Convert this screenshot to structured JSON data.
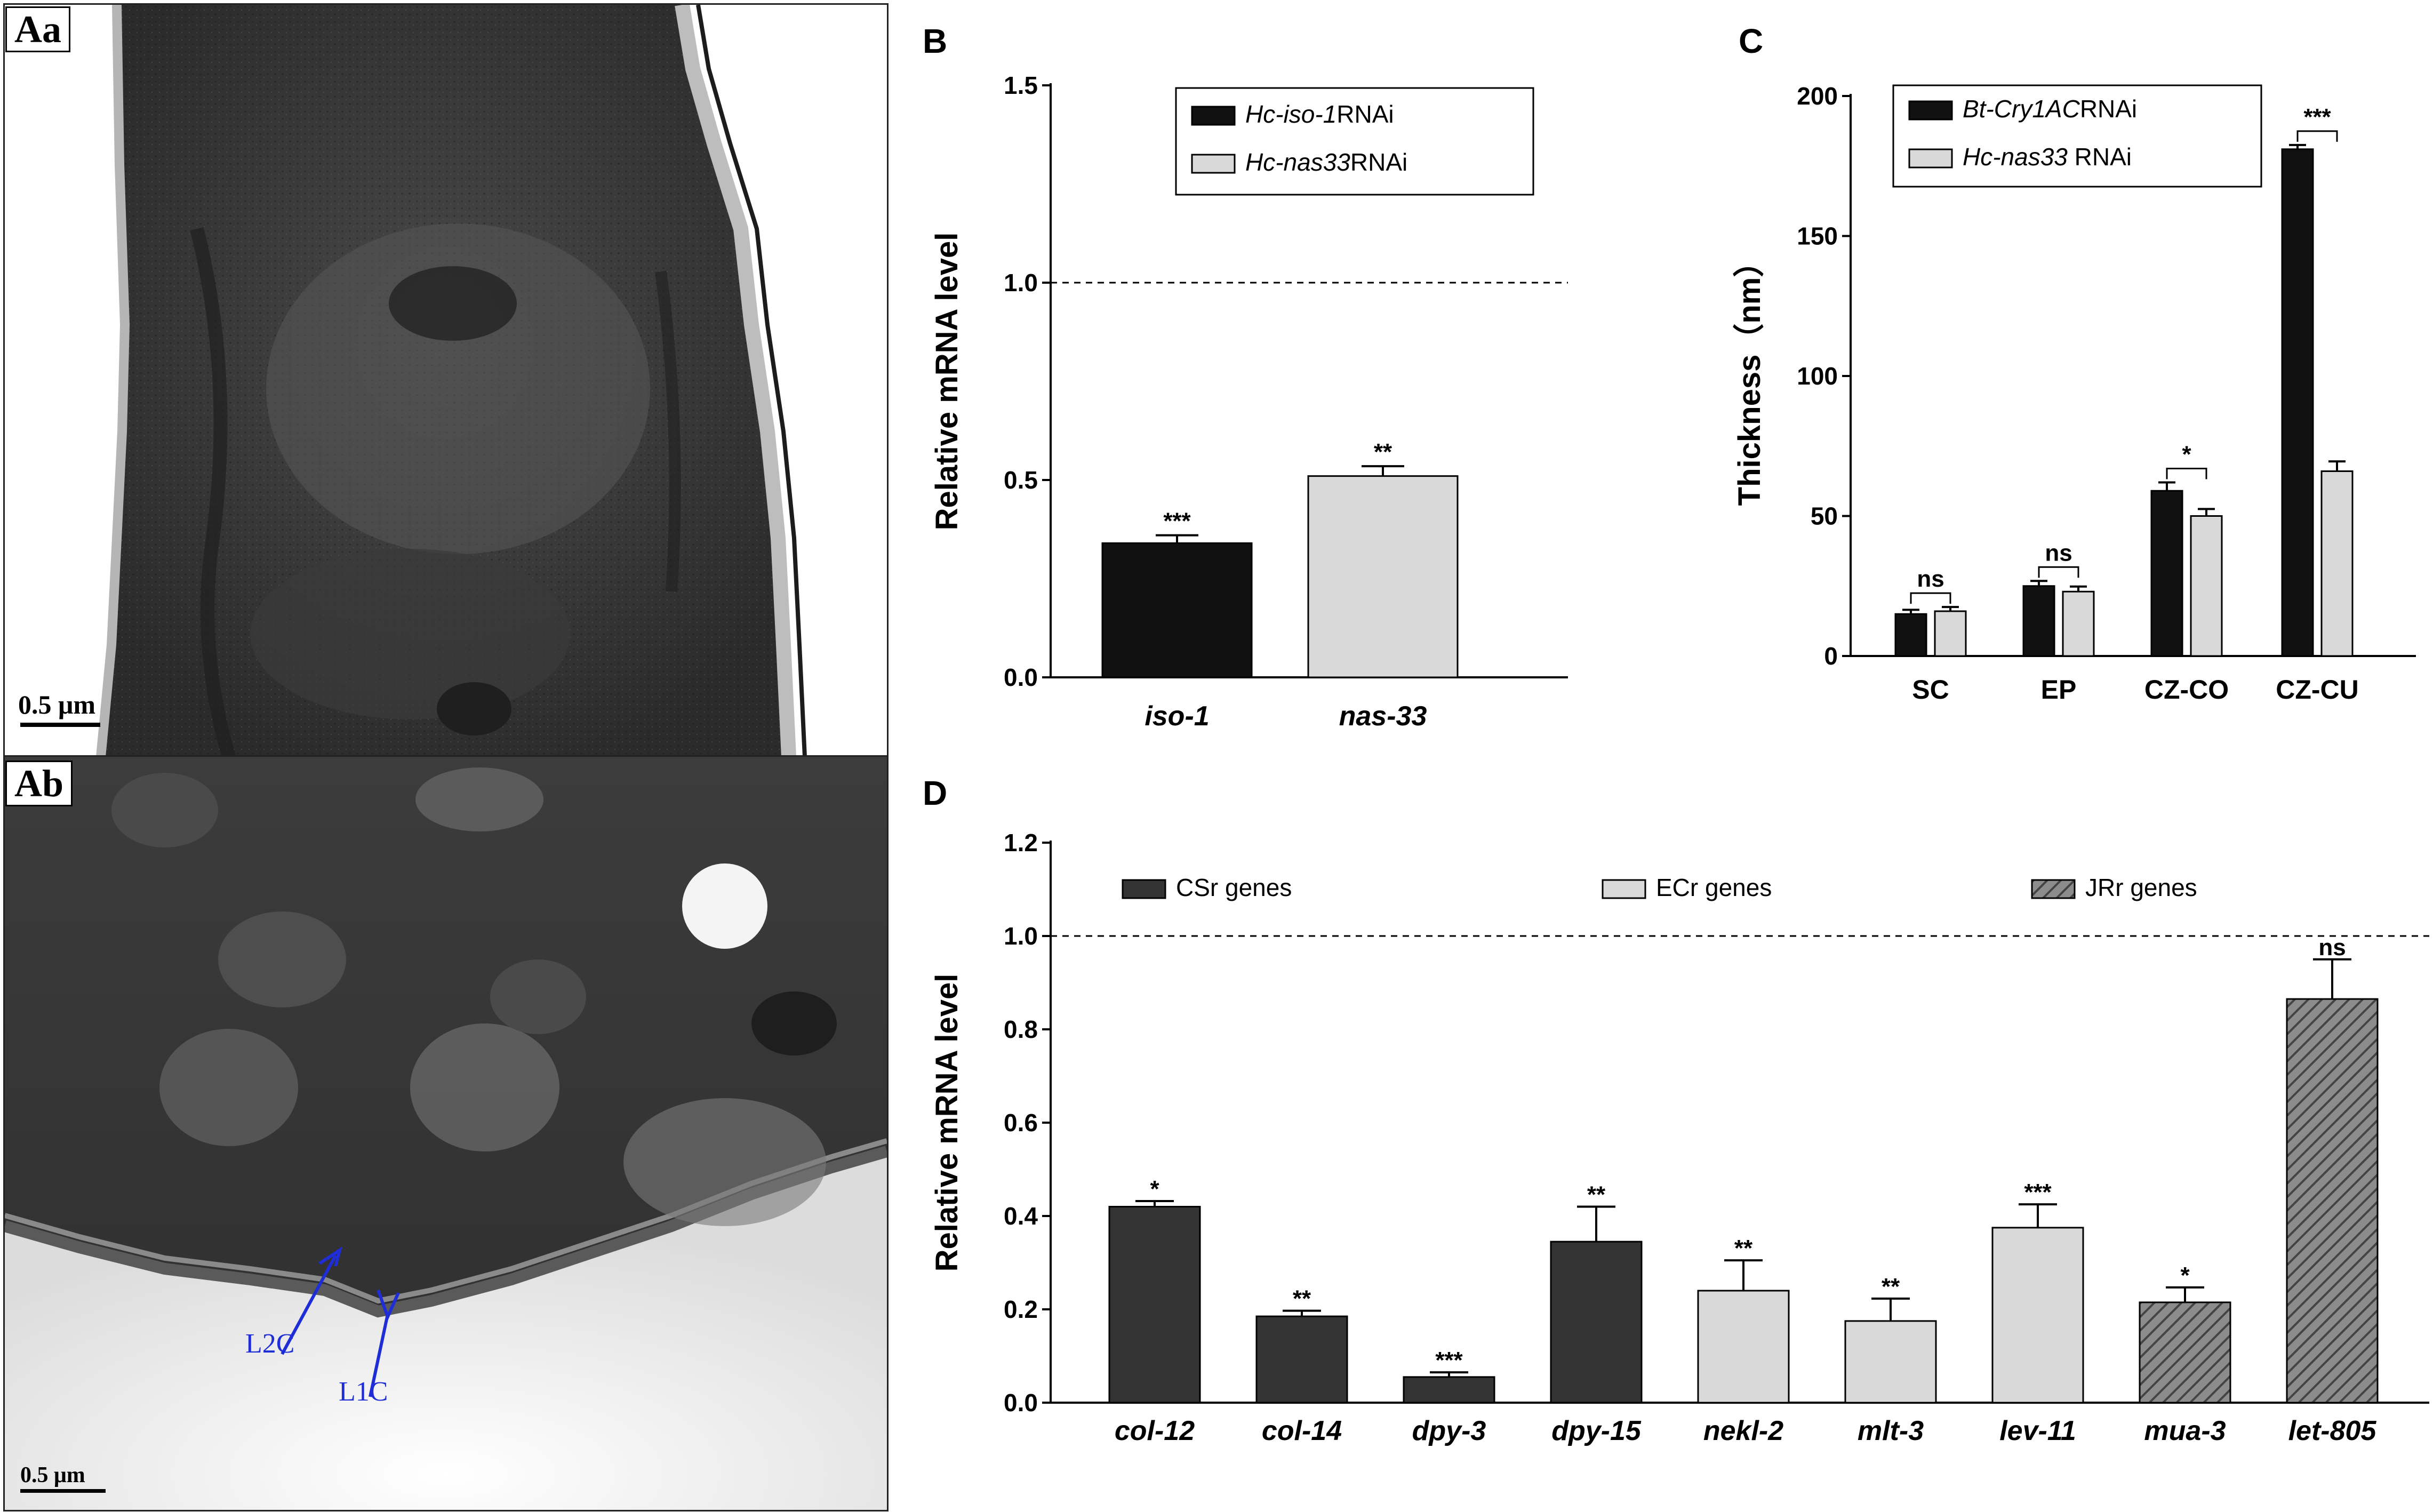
{
  "panel_a": {
    "top_label": "Aa",
    "bottom_label": "Ab",
    "scale_top": "0.5 μm",
    "scale_bottom": "0.5 μm",
    "arrow_labels": [
      "L2C",
      "L1C"
    ],
    "arrow_color": "#1e2dd6"
  },
  "chart_data": [
    {
      "id": "B",
      "panel_label": "B",
      "type": "bar",
      "categories": [
        "iso-1",
        "nas-33"
      ],
      "series": [
        {
          "name_parts": [
            "Hc-iso-1",
            "RNAi"
          ],
          "color": "#111111"
        },
        {
          "name_parts": [
            "Hc-nas33",
            "RNAi"
          ],
          "color": "#d9d9d9"
        }
      ],
      "values": [
        0.34,
        0.51
      ],
      "errors": [
        0.02,
        0.025
      ],
      "significance": [
        "***",
        "**"
      ],
      "ylabel": "Relative mRNA level",
      "ylim": [
        0,
        1.5
      ],
      "yticks": [
        "0.0",
        "0.5",
        "1.0",
        "1.5"
      ],
      "reference_line": 1.0
    },
    {
      "id": "C",
      "panel_label": "C",
      "type": "bar",
      "categories": [
        "SC",
        "EP",
        "CZ-CO",
        "CZ-CU"
      ],
      "series": [
        {
          "name_parts": [
            "Bt-Cry1AC",
            "RNAi"
          ],
          "color": "#111111",
          "values": [
            15,
            25,
            59,
            181
          ],
          "errors": [
            1.5,
            1.8,
            3,
            1.5
          ]
        },
        {
          "name_parts": [
            "Hc-nas33",
            " RNAi"
          ],
          "color": "#d9d9d9",
          "values": [
            16,
            23,
            50,
            66
          ],
          "errors": [
            1.5,
            1.8,
            2.5,
            3.5
          ]
        }
      ],
      "significance": [
        "ns",
        "ns",
        "*",
        "***"
      ],
      "ylabel": "Thickness（nm）",
      "ylim": [
        0,
        200
      ],
      "yticks": [
        "0",
        "50",
        "100",
        "150",
        "200"
      ]
    },
    {
      "id": "D",
      "panel_label": "D",
      "type": "bar",
      "categories": [
        "col-12",
        "col-14",
        "dpy-3",
        "dpy-15",
        "nekl-2",
        "mlt-3",
        "lev-11",
        "mua-3",
        "let-805"
      ],
      "values": [
        0.42,
        0.185,
        0.055,
        0.345,
        0.24,
        0.175,
        0.375,
        0.215,
        0.865
      ],
      "errors": [
        0.012,
        0.012,
        0.01,
        0.075,
        0.065,
        0.048,
        0.05,
        0.032,
        0.085
      ],
      "groups": [
        "CSr",
        "CSr",
        "CSr",
        "CSr",
        "ECr",
        "ECr",
        "ECr",
        "JRr",
        "JRr"
      ],
      "significance": [
        "*",
        "**",
        "***",
        "**",
        "**",
        "**",
        "***",
        "*",
        "ns"
      ],
      "series": [
        {
          "name": "CSr genes",
          "color": "#333333",
          "pattern": "solid"
        },
        {
          "name": "ECr genes",
          "color": "#d9d9d9",
          "pattern": "solid"
        },
        {
          "name": "JRr genes",
          "color": "#888888",
          "pattern": "hatched"
        }
      ],
      "ylabel": "Relative mRNA level",
      "ylim": [
        0,
        1.2
      ],
      "yticks": [
        "0.0",
        "0.2",
        "0.4",
        "0.6",
        "0.8",
        "1.0",
        "1.2"
      ],
      "reference_line": 1.0
    }
  ]
}
